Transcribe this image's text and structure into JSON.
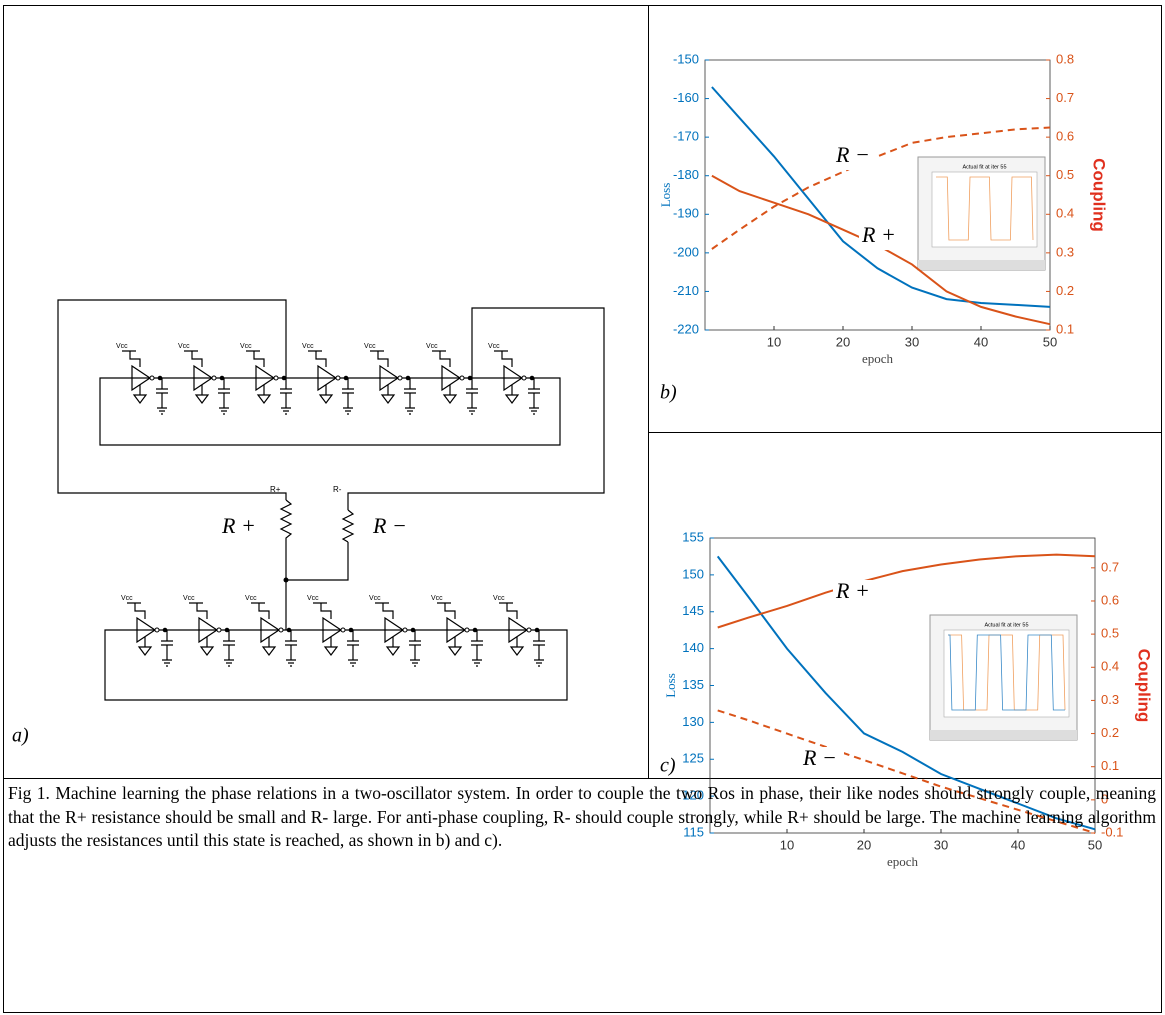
{
  "circuit": {
    "supply_label": "Vcc",
    "resistor_labels": [
      "R+",
      "R-"
    ],
    "annotations": [
      "R +",
      "R −"
    ]
  },
  "panel_labels": [
    "a)",
    "b)",
    "c)"
  ],
  "chart_data": [
    {
      "type": "line",
      "xlabel": "epoch",
      "ylabel": "Loss",
      "y2label": "Coupling",
      "inset_title": "Actual fit at iter 55",
      "xlim": [
        0,
        50
      ],
      "xticks": [
        10,
        20,
        30,
        40,
        50
      ],
      "ylim": [
        -220,
        -150
      ],
      "yticks": [
        -220,
        -210,
        -200,
        -190,
        -180,
        -170,
        -160,
        -150
      ],
      "y2lim": [
        0.1,
        0.8
      ],
      "y2ticks": [
        0.1,
        0.2,
        0.3,
        0.4,
        0.5,
        0.6,
        0.7,
        0.8
      ],
      "x": [
        1,
        5,
        10,
        15,
        20,
        25,
        30,
        35,
        40,
        45,
        50
      ],
      "series": [
        {
          "color": "#0072bd",
          "values": [
            -157,
            -165,
            -175,
            -186,
            -197,
            -204,
            -209,
            -212,
            -213,
            -213.5,
            -214
          ]
        },
        {
          "name": "R −",
          "color": "#d95319",
          "dashed": true,
          "axis": "y2",
          "values": [
            0.31,
            0.36,
            0.42,
            0.47,
            0.51,
            0.55,
            0.585,
            0.6,
            0.61,
            0.62,
            0.625
          ]
        },
        {
          "name": "R +",
          "color": "#d95319",
          "axis": "y2",
          "values": [
            0.5,
            0.46,
            0.43,
            0.4,
            0.36,
            0.32,
            0.27,
            0.2,
            0.16,
            0.135,
            0.115
          ]
        }
      ]
    },
    {
      "type": "line",
      "xlabel": "epoch",
      "ylabel": "Loss",
      "y2label": "Coupling",
      "inset_title": "Actual fit at iter 55",
      "xlim": [
        0,
        50
      ],
      "xticks": [
        10,
        20,
        30,
        40,
        50
      ],
      "ylim": [
        115,
        155
      ],
      "yticks": [
        115,
        120,
        125,
        130,
        135,
        140,
        145,
        150,
        155
      ],
      "y2lim": [
        -0.1,
        0.79
      ],
      "y2ticks": [
        -0.1,
        0,
        0.1,
        0.2,
        0.3,
        0.4,
        0.5,
        0.6,
        0.7
      ],
      "x": [
        1,
        5,
        10,
        15,
        20,
        25,
        30,
        35,
        40,
        45,
        50
      ],
      "series": [
        {
          "color": "#0072bd",
          "values": [
            152.5,
            147,
            140,
            134,
            128.5,
            126,
            123,
            121,
            119,
            117,
            115.5
          ]
        },
        {
          "name": "R +",
          "color": "#d95319",
          "axis": "y2",
          "values": [
            0.52,
            0.55,
            0.585,
            0.625,
            0.66,
            0.69,
            0.71,
            0.725,
            0.735,
            0.74,
            0.735
          ]
        },
        {
          "name": "R −",
          "color": "#d95319",
          "dashed": true,
          "axis": "y2",
          "values": [
            0.27,
            0.24,
            0.2,
            0.16,
            0.12,
            0.08,
            0.04,
            0.005,
            -0.03,
            -0.065,
            -0.1
          ]
        }
      ]
    }
  ],
  "caption": "Fig 1. Machine learning the phase relations in a two-oscillator system. In order to couple the two Ros in phase, their like nodes should strongly couple, meaning that the R+ resistance should be small and R- large. For anti-phase coupling, R- should couple strongly, while R+ should be large. The machine learning algorithm adjusts the resistances until this state is reached, as shown in b) and c)."
}
